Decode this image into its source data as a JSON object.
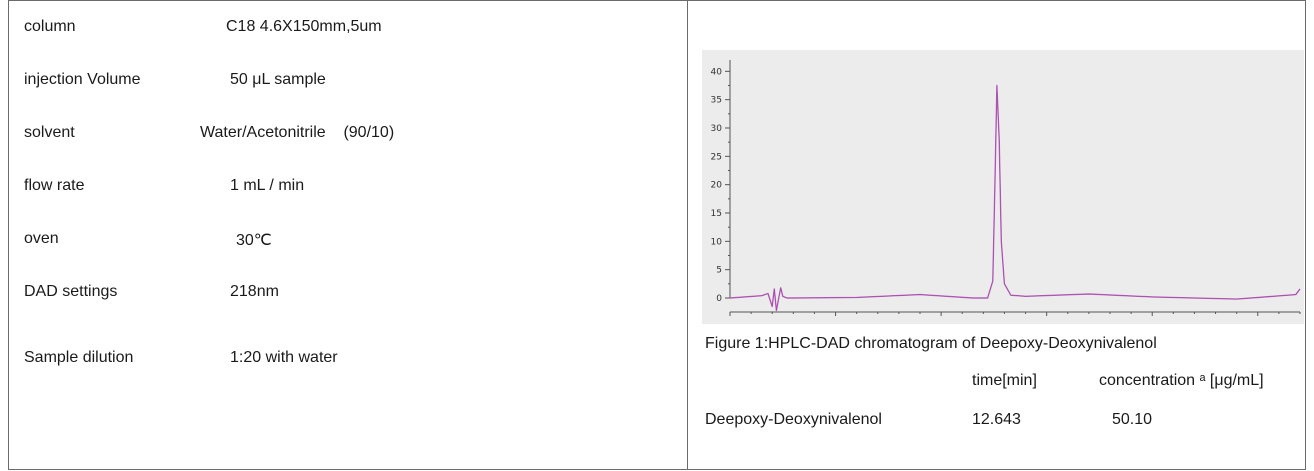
{
  "params": [
    {
      "label": "column",
      "value": "C18 4.6X150mm,5um"
    },
    {
      "label": "injection Volume",
      "value": "50 μL sample"
    },
    {
      "label": "solvent",
      "value": "Water/Acetonitrile    (90/10)"
    },
    {
      "label": "flow rate",
      "value": "1 mL / min"
    },
    {
      "label": "oven",
      "value": "30℃"
    },
    {
      "label": "DAD settings",
      "value": "218nm"
    },
    {
      "label": "Sample dilution",
      "value": "1:20 with water"
    }
  ],
  "chart_data": {
    "type": "line",
    "y_ticks": [
      "0",
      "5",
      "10",
      "15",
      "20",
      "25",
      "30",
      "35",
      "40"
    ],
    "ylim": [
      0,
      42
    ],
    "xlim": [
      0,
      27
    ],
    "series": [
      {
        "color": "#c46dc8",
        "x": [
          0,
          1.5,
          1.8,
          2.0,
          2.1,
          2.2,
          2.4,
          2.5,
          2.7,
          3.0,
          6.0,
          9.0,
          11.5,
          12.2,
          12.45,
          12.55,
          12.643,
          12.75,
          12.85,
          13.0,
          13.3,
          14.0,
          17.0,
          20.0,
          24.0,
          26.8,
          27.0
        ],
        "y": [
          0,
          0.4,
          0.8,
          -1.5,
          1.6,
          -2.2,
          1.8,
          0.3,
          0,
          0,
          0.1,
          0.6,
          0,
          0,
          3,
          20,
          37.5,
          28,
          10,
          2.5,
          0.5,
          0.3,
          0.7,
          0.2,
          -0.2,
          0.6,
          1.6
        ]
      }
    ]
  },
  "figure": {
    "caption": "Figure 1:HPLC-DAD chromatogram of Deepoxy-Deoxynivalenol",
    "col_time": "time[min]",
    "col_conc": "concentration ᵃ [μg/mL]",
    "compound": "Deepoxy-Deoxynivalenol",
    "time": "12.643",
    "concentration": "50.10"
  }
}
